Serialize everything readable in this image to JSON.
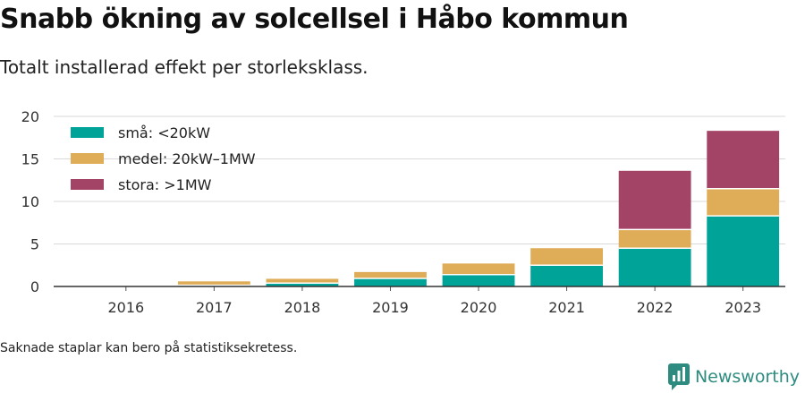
{
  "title": "Snabb ökning av solcellsel i Håbo kommun",
  "subtitle": "Totalt installerad effekt per storleksklass.",
  "footnote": "Saknade staplar kan bero på statistiksekretess.",
  "brand": {
    "name": "Newsworthy",
    "icon": "newsworthy-logo-icon",
    "color": "#2d8c7f"
  },
  "chart_data": {
    "type": "bar",
    "stacked": true,
    "categories": [
      "2016",
      "2017",
      "2018",
      "2019",
      "2020",
      "2021",
      "2022",
      "2023"
    ],
    "series": [
      {
        "name": "små: <20kW",
        "color": "#00a398",
        "values": [
          0.05,
          0.15,
          0.4,
          0.95,
          1.4,
          2.5,
          4.5,
          8.3
        ]
      },
      {
        "name": "medel: 20kW–1MW",
        "color": "#dfac57",
        "values": [
          0,
          0.45,
          0.5,
          0.75,
          1.3,
          2.0,
          2.2,
          3.2
        ]
      },
      {
        "name": "stora: >1MW",
        "color": "#a34466",
        "values": [
          0,
          0,
          0,
          0,
          0,
          0,
          6.9,
          6.8
        ]
      }
    ],
    "ylim": [
      0,
      20
    ],
    "yticks": [
      "0",
      "5",
      "10",
      "15",
      "20"
    ],
    "grid": true,
    "legend_position": "top-left"
  }
}
